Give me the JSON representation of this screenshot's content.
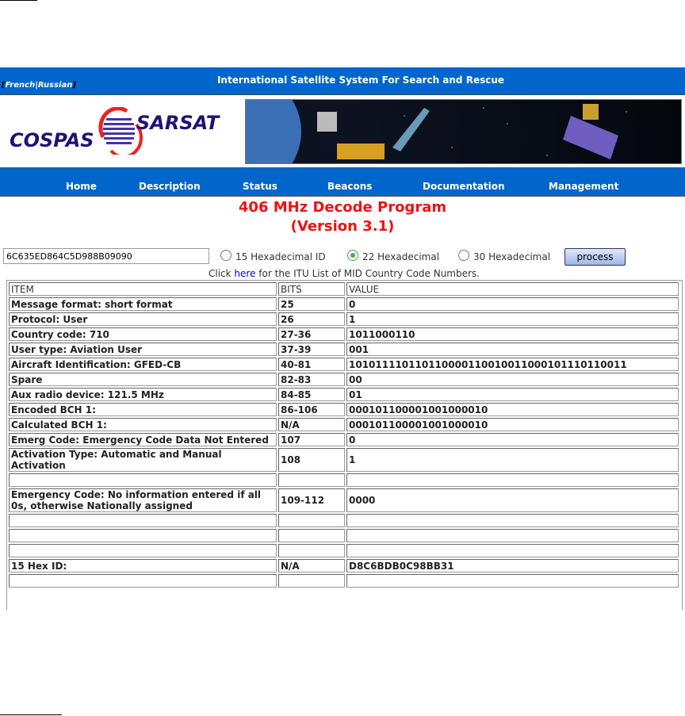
{
  "header": {
    "languages": [
      "French",
      "Russian"
    ],
    "site_title": "International Satellite System For Search and Rescue",
    "logo_text": "COSPAS SARSAT"
  },
  "nav": [
    "Home",
    "Description",
    "Status",
    "Beacons",
    "Documentation",
    "Management"
  ],
  "page": {
    "title_line1": "406 MHz Decode Program",
    "title_line2": "(Version 3.1)"
  },
  "form": {
    "hex_value": "6C635ED864C5D988B09090",
    "options": [
      {
        "label": "15 Hexadecimal ID",
        "selected": false
      },
      {
        "label": "22 Hexadecimal",
        "selected": true
      },
      {
        "label": "30 Hexadecimal",
        "selected": false
      }
    ],
    "process_label": "process"
  },
  "info": {
    "prefix": "Click",
    "link": "here",
    "suffix": "for the ITU List of MID Country Code Numbers."
  },
  "table": {
    "headers": [
      "ITEM",
      "BITS",
      "VALUE"
    ],
    "rows": [
      [
        "Message format: short format",
        "25",
        "0"
      ],
      [
        "Protocol: User",
        "26",
        "1"
      ],
      [
        "Country code: 710",
        "27-36",
        "1011000110"
      ],
      [
        "User type: Aviation User",
        "37-39",
        "001"
      ],
      [
        "Aircraft Identification: GFED-CB",
        "40-81",
        "101011110110110000110010011000101110110011"
      ],
      [
        "Spare",
        "82-83",
        "00"
      ],
      [
        "Aux radio device: 121.5 MHz",
        "84-85",
        "01"
      ],
      [
        "Encoded BCH 1:",
        "86-106",
        "000101100001001000010"
      ],
      [
        "Calculated BCH 1:",
        "N/A",
        "000101100001001000010"
      ],
      [
        "Emerg Code: Emergency Code Data Not Entered",
        "107",
        "0"
      ],
      [
        "Activation Type: Automatic and Manual Activation",
        "108",
        "1"
      ],
      [
        "",
        "",
        ""
      ],
      [
        "Emergency Code: No information entered if all 0s, otherwise Nationally assigned",
        "109-112",
        "0000"
      ],
      [
        "",
        "",
        ""
      ],
      [
        "",
        "",
        ""
      ],
      [
        "",
        "",
        ""
      ],
      [
        "15 Hex ID:",
        "N/A",
        "D8C6BDB0C98BB31"
      ],
      [
        "",
        "",
        ""
      ]
    ]
  },
  "colors": {
    "bar_blue": "#0066cc",
    "title_red": "#ee1111",
    "logo_navy": "#221177",
    "logo_red": "#ee2222"
  }
}
